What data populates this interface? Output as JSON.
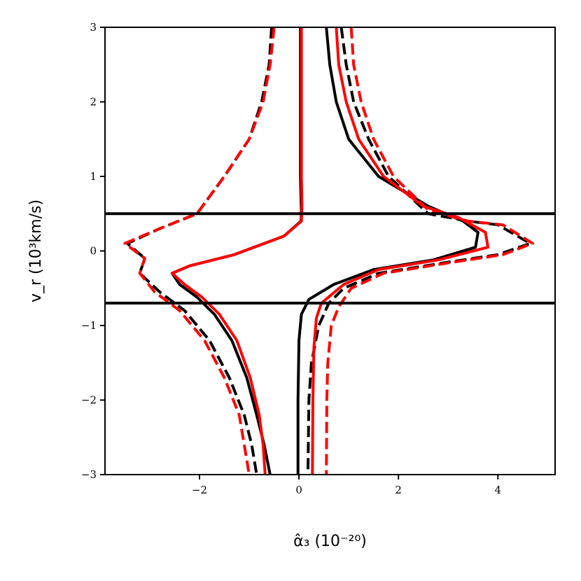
{
  "chart_data": {
    "type": "line",
    "xlabel": "α̂₃ (10⁻²⁰)",
    "ylabel": "v_r (10³km/s)",
    "xlim": [
      -3.9,
      5.15
    ],
    "ylim": [
      -3,
      3
    ],
    "x_ticks": [
      -2,
      0,
      2,
      4
    ],
    "x_tick_labels": [
      "−2",
      "0",
      "2",
      "4"
    ],
    "y_ticks": [
      -3,
      -2,
      -1,
      0,
      1,
      2,
      3
    ],
    "y_tick_labels": [
      "−3",
      "−2",
      "−1",
      "0",
      "1",
      "2",
      "3"
    ],
    "grid": false,
    "legend": "none",
    "hlines": [
      {
        "y": 0.5,
        "color": "#000000"
      },
      {
        "y": -0.7,
        "color": "#000000"
      }
    ],
    "series": [
      {
        "color": "#000000",
        "dash": "solid",
        "points": [
          [
            0.03,
            3.0
          ],
          [
            0.03,
            2.0
          ],
          [
            0.03,
            1.0
          ],
          [
            0.05,
            0.5
          ],
          [
            0.04,
            0.4
          ],
          [
            -0.3,
            0.2
          ],
          [
            -1.3,
            -0.05
          ],
          [
            -2.2,
            -0.2
          ],
          [
            -2.55,
            -0.3
          ],
          [
            -2.4,
            -0.45
          ],
          [
            -2.05,
            -0.62
          ],
          [
            -1.7,
            -0.85
          ],
          [
            -1.35,
            -1.2
          ],
          [
            -1.05,
            -1.7
          ],
          [
            -0.85,
            -2.2
          ],
          [
            -0.7,
            -2.6
          ],
          [
            -0.58,
            -3.0
          ]
        ]
      },
      {
        "color": "#000000",
        "dash": "solid",
        "points": [
          [
            0.55,
            3.0
          ],
          [
            0.62,
            2.5
          ],
          [
            0.75,
            2.0
          ],
          [
            1.0,
            1.5
          ],
          [
            1.6,
            1.0
          ],
          [
            2.6,
            0.6
          ],
          [
            3.3,
            0.4
          ],
          [
            3.6,
            0.25
          ],
          [
            3.55,
            0.05
          ],
          [
            2.7,
            -0.12
          ],
          [
            1.5,
            -0.25
          ],
          [
            0.7,
            -0.45
          ],
          [
            0.2,
            -0.65
          ],
          [
            0.05,
            -0.85
          ],
          [
            0.0,
            -1.2
          ],
          [
            -0.02,
            -2.0
          ],
          [
            -0.02,
            -3.0
          ]
        ]
      },
      {
        "color": "#000000",
        "dash": "dashed",
        "points": [
          [
            -0.55,
            3.0
          ],
          [
            -0.6,
            2.5
          ],
          [
            -0.75,
            2.0
          ],
          [
            -1.0,
            1.5
          ],
          [
            -1.5,
            1.0
          ],
          [
            -2.05,
            0.5
          ],
          [
            -2.8,
            0.3
          ],
          [
            -3.45,
            0.1
          ],
          [
            -3.1,
            -0.1
          ],
          [
            -3.2,
            -0.3
          ],
          [
            -2.8,
            -0.55
          ],
          [
            -2.3,
            -0.8
          ],
          [
            -1.8,
            -1.2
          ],
          [
            -1.4,
            -1.7
          ],
          [
            -1.1,
            -2.2
          ],
          [
            -0.95,
            -2.6
          ],
          [
            -0.85,
            -3.0
          ]
        ]
      },
      {
        "color": "#000000",
        "dash": "dashed",
        "points": [
          [
            0.85,
            3.0
          ],
          [
            0.95,
            2.5
          ],
          [
            1.1,
            2.0
          ],
          [
            1.4,
            1.5
          ],
          [
            1.8,
            1.0
          ],
          [
            2.6,
            0.5
          ],
          [
            3.4,
            0.4
          ],
          [
            4.0,
            0.35
          ],
          [
            4.65,
            0.1
          ],
          [
            4.0,
            -0.05
          ],
          [
            3.0,
            -0.15
          ],
          [
            1.6,
            -0.3
          ],
          [
            0.9,
            -0.5
          ],
          [
            0.6,
            -0.7
          ],
          [
            0.4,
            -1.0
          ],
          [
            0.25,
            -1.5
          ],
          [
            0.2,
            -2.0
          ],
          [
            0.18,
            -3.0
          ]
        ]
      },
      {
        "color": "#ff0000",
        "dash": "solid",
        "points": [
          [
            0.05,
            3.0
          ],
          [
            0.05,
            2.0
          ],
          [
            0.05,
            1.0
          ],
          [
            0.06,
            0.6
          ],
          [
            0.05,
            0.4
          ],
          [
            -0.3,
            0.2
          ],
          [
            -1.3,
            -0.05
          ],
          [
            -2.2,
            -0.2
          ],
          [
            -2.55,
            -0.3
          ],
          [
            -2.3,
            -0.45
          ],
          [
            -1.95,
            -0.62
          ],
          [
            -1.6,
            -0.85
          ],
          [
            -1.25,
            -1.2
          ],
          [
            -0.98,
            -1.7
          ],
          [
            -0.8,
            -2.2
          ],
          [
            -0.72,
            -2.6
          ],
          [
            -0.68,
            -3.0
          ]
        ]
      },
      {
        "color": "#ff0000",
        "dash": "solid",
        "points": [
          [
            0.75,
            3.0
          ],
          [
            0.8,
            2.5
          ],
          [
            0.95,
            2.0
          ],
          [
            1.2,
            1.5
          ],
          [
            1.7,
            1.0
          ],
          [
            2.5,
            0.6
          ],
          [
            3.2,
            0.45
          ],
          [
            3.75,
            0.25
          ],
          [
            3.8,
            0.05
          ],
          [
            2.8,
            -0.12
          ],
          [
            1.6,
            -0.25
          ],
          [
            0.9,
            -0.45
          ],
          [
            0.45,
            -0.7
          ],
          [
            0.35,
            -0.9
          ],
          [
            0.3,
            -1.3
          ],
          [
            0.28,
            -2.0
          ],
          [
            0.27,
            -3.0
          ]
        ]
      },
      {
        "color": "#ff0000",
        "dash": "dashed",
        "points": [
          [
            -0.5,
            3.0
          ],
          [
            -0.58,
            2.5
          ],
          [
            -0.72,
            2.0
          ],
          [
            -1.0,
            1.5
          ],
          [
            -1.5,
            1.0
          ],
          [
            -2.05,
            0.5
          ],
          [
            -2.8,
            0.3
          ],
          [
            -3.5,
            0.1
          ],
          [
            -3.1,
            -0.1
          ],
          [
            -3.2,
            -0.3
          ],
          [
            -2.9,
            -0.55
          ],
          [
            -2.4,
            -0.8
          ],
          [
            -1.9,
            -1.2
          ],
          [
            -1.5,
            -1.7
          ],
          [
            -1.2,
            -2.2
          ],
          [
            -1.1,
            -2.6
          ],
          [
            -1.0,
            -3.0
          ]
        ]
      },
      {
        "color": "#ff0000",
        "dash": "dashed",
        "points": [
          [
            1.05,
            3.0
          ],
          [
            1.1,
            2.5
          ],
          [
            1.25,
            2.0
          ],
          [
            1.5,
            1.5
          ],
          [
            1.9,
            1.0
          ],
          [
            2.6,
            0.55
          ],
          [
            3.4,
            0.4
          ],
          [
            4.1,
            0.35
          ],
          [
            4.7,
            0.1
          ],
          [
            4.1,
            -0.05
          ],
          [
            3.1,
            -0.15
          ],
          [
            1.7,
            -0.3
          ],
          [
            1.05,
            -0.5
          ],
          [
            0.8,
            -0.75
          ],
          [
            0.65,
            -1.0
          ],
          [
            0.58,
            -1.5
          ],
          [
            0.56,
            -2.0
          ],
          [
            0.55,
            -3.0
          ]
        ]
      }
    ]
  }
}
